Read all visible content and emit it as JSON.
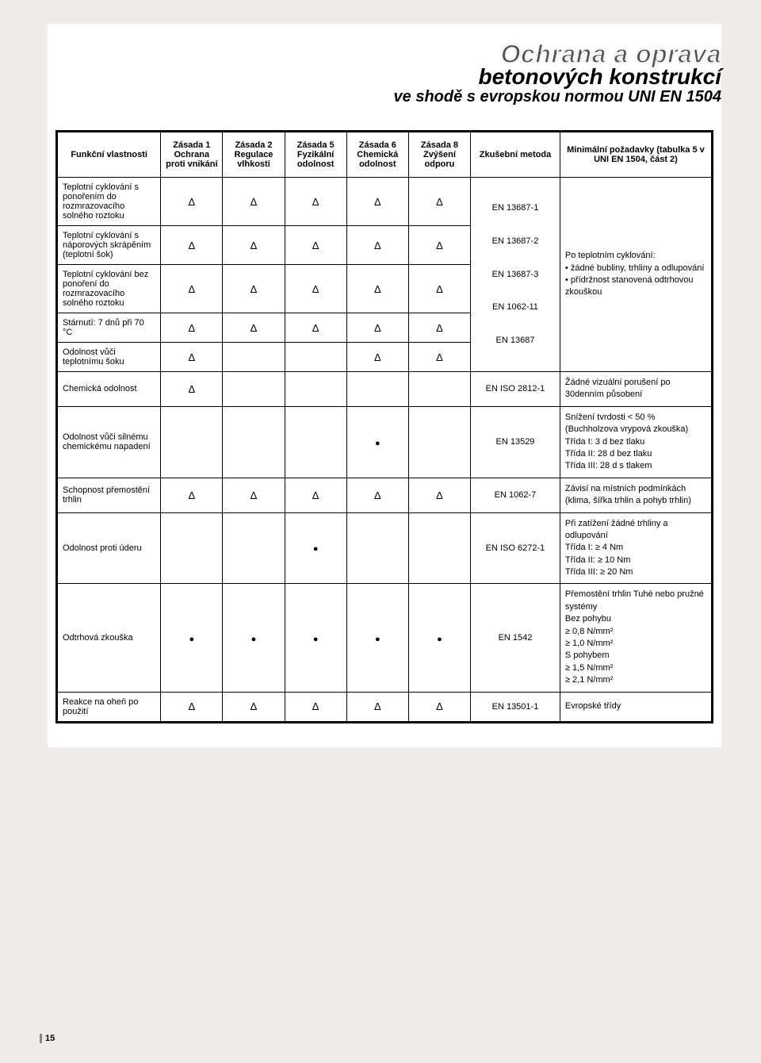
{
  "header": {
    "title_main": "Ochrana a oprava",
    "title_sub1": "betonových konstrukcí",
    "title_sub2": "ve shodě s evropskou normou UNI EN 1504"
  },
  "table": {
    "columns": [
      {
        "key": "prop",
        "label": "Funkční vlastnosti"
      },
      {
        "key": "z1",
        "label": "Zásada 1\nOchrana proti vnikání"
      },
      {
        "key": "z2",
        "label": "Zásada 2\nRegulace vlhkosti"
      },
      {
        "key": "z5",
        "label": "Zásada 5\nFyzikální odolnost"
      },
      {
        "key": "z6",
        "label": "Zásada 6\nChemická odolnost"
      },
      {
        "key": "z8",
        "label": "Zásada 8\nZvýšení odporu"
      },
      {
        "key": "method",
        "label": "Zkušební metoda"
      },
      {
        "key": "req",
        "label": "Minimální požadavky (tabulka 5 v UNI EN 1504, část 2)"
      }
    ],
    "rows": [
      {
        "prop": "Teplotní cyklování s ponořením do rozmrazovacího solného roztoku",
        "marks": [
          "Δ",
          "Δ",
          "Δ",
          "Δ",
          "Δ"
        ],
        "method_group_start": true,
        "method": "",
        "req": ""
      },
      {
        "prop": "Teplotní cyklování s náporových skrápěním (teplotní šok)",
        "marks": [
          "Δ",
          "Δ",
          "Δ",
          "Δ",
          "Δ"
        ],
        "method_group": true
      },
      {
        "prop": "Teplotní cyklování bez ponoření do rozmrazovacího solného roztoku",
        "marks": [
          "Δ",
          "Δ",
          "Δ",
          "Δ",
          "Δ"
        ],
        "method_group": true
      },
      {
        "prop": "Stárnutí: 7 dnů při 70 °C",
        "marks": [
          "Δ",
          "Δ",
          "Δ",
          "Δ",
          "Δ"
        ],
        "method_group": true
      },
      {
        "prop": "Odolnost vůči teplotnímu šoku",
        "marks": [
          "Δ",
          "",
          "",
          "Δ",
          "Δ"
        ],
        "method_group_end": true
      }
    ],
    "method_group_text": "EN 13687-1\n\nEN 13687-2\n\nEN 13687-3\n\nEN 1062-11\n\nEN 13687",
    "req_group_text": "Po teplotním cyklování:\n• žádné bubliny, trhliny a odlupování\n• přídržnost stanovená odtrhovou zkouškou",
    "simple_rows": [
      {
        "prop": "Chemická odolnost",
        "marks": [
          "Δ",
          "",
          "",
          "",
          ""
        ],
        "method": "EN ISO 2812-1",
        "req": "Žádné vizuální porušení po 30denním působení"
      },
      {
        "prop": "Odolnost vůči silnému chemickému napadení",
        "marks": [
          "",
          "",
          "",
          "●",
          ""
        ],
        "method": "EN 13529",
        "req": "Snížení tvrdosti < 50 % (Buchholzova vrypová zkouška)\nTřída I: 3 d bez tlaku\nTřída II: 28 d bez tlaku\nTřída III: 28 d s tlakem"
      },
      {
        "prop": "Schopnost přemostění trhlin",
        "marks": [
          "Δ",
          "Δ",
          "Δ",
          "Δ",
          "Δ"
        ],
        "method": "EN 1062-7",
        "req": "Závisí na místních podmínkách (klima, šířka trhlin a pohyb trhlin)"
      },
      {
        "prop": "Odolnost proti úderu",
        "marks": [
          "",
          "",
          "●",
          "",
          ""
        ],
        "method": "EN ISO 6272-1",
        "req": "Při zatížení žádné trhliny a odlupování\nTřída I: ≥ 4 Nm\nTřída II: ≥ 10 Nm\nTřída III: ≥ 20 Nm"
      },
      {
        "prop": "Odtrhová zkouška",
        "marks": [
          "●",
          "●",
          "●",
          "●",
          "●"
        ],
        "method": "EN 1542",
        "req": "Přemostění trhlin Tuhé nebo pružné systémy\nBez pohybu\n≥ 0,8 N/mm²\n≥ 1,0 N/mm²\nS pohybem\n≥ 1,5 N/mm²\n≥ 2,1 N/mm²"
      },
      {
        "prop": "Reakce na oheň po použití",
        "marks": [
          "Δ",
          "Δ",
          "Δ",
          "Δ",
          "Δ"
        ],
        "method": "EN 13501-1",
        "req": "Evropské třídy"
      }
    ]
  },
  "page_number": "15"
}
